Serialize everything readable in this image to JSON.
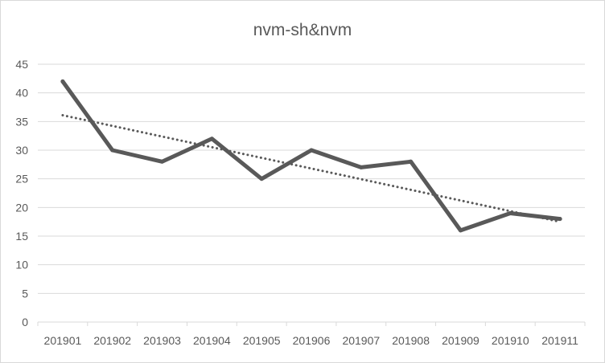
{
  "chart_data": {
    "type": "line",
    "title": "nvm-sh&nvm",
    "categories": [
      "201901",
      "201902",
      "201903",
      "201904",
      "201905",
      "201906",
      "201907",
      "201908",
      "201909",
      "201910",
      "201911"
    ],
    "series": [
      {
        "values": [
          42,
          30,
          28,
          32,
          25,
          30,
          27,
          28,
          16,
          19,
          18
        ],
        "color": "#595959"
      }
    ],
    "trendline": {
      "type": "linear",
      "style": "dotted",
      "color": "#595959",
      "start": 36.1,
      "end": 17.5
    },
    "ylim": [
      0,
      45
    ],
    "yticks": [
      0,
      5,
      10,
      15,
      20,
      25,
      30,
      35,
      40,
      45
    ],
    "grid": true,
    "xlabel": "",
    "ylabel": "",
    "gridline_color": "#d9d9d9"
  }
}
